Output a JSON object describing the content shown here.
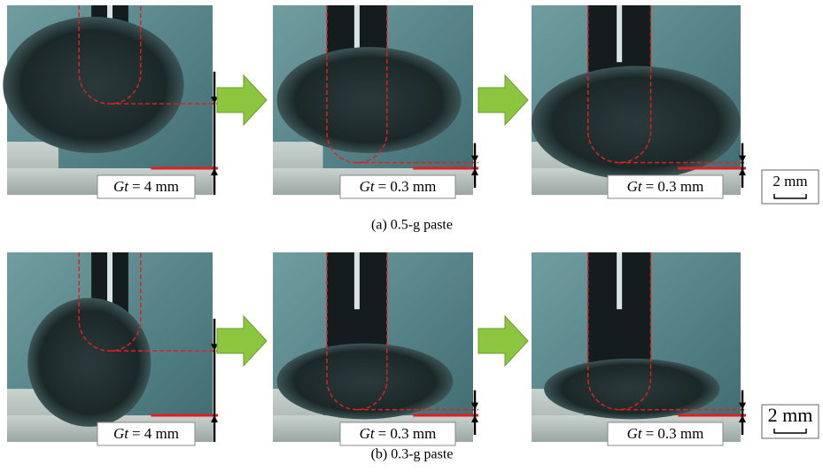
{
  "figure": {
    "rows": [
      {
        "caption": "(a) 0.5-g paste",
        "scale_bar": "2 mm",
        "panels": [
          {
            "variable": "Gt",
            "value": "= 4 mm"
          },
          {
            "variable": "Gt",
            "value": "= 0.3 mm"
          },
          {
            "variable": "Gt",
            "value": "= 0.3 mm"
          }
        ]
      },
      {
        "caption": "(b) 0.3-g paste",
        "scale_bar": "2 mm",
        "panels": [
          {
            "variable": "Gt",
            "value": "= 4 mm"
          },
          {
            "variable": "Gt",
            "value": "= 0.3 mm"
          },
          {
            "variable": "Gt",
            "value": "= 0.3 mm"
          }
        ]
      }
    ]
  }
}
